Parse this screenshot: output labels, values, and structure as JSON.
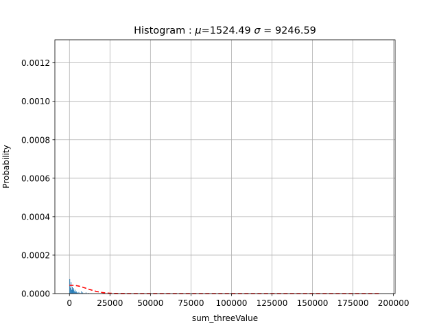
{
  "chart_data": {
    "type": "bar",
    "title": "Histogram : μ=1524.49 σ = 9246.59",
    "title_parts": {
      "prefix": "Histogram : ",
      "mu_symbol": "μ",
      "mu_value": "=1524.49",
      "sigma_symbol": "σ",
      "sigma_value": " = 9246.59"
    },
    "xlabel": "sum_threeValue",
    "ylabel": "Probability",
    "xlim": [
      -9000,
      201000
    ],
    "ylim": [
      0,
      0.00132
    ],
    "grid": true,
    "x_ticks": [
      0,
      25000,
      50000,
      75000,
      100000,
      125000,
      150000,
      175000,
      200000
    ],
    "x_tick_labels": [
      "0",
      "25000",
      "50000",
      "75000",
      "100000",
      "125000",
      "150000",
      "175000",
      "200000"
    ],
    "y_ticks": [
      0,
      0.0002,
      0.0004,
      0.0006,
      0.0008,
      0.001,
      0.0012
    ],
    "y_tick_labels": [
      "0.0000",
      "0.0002",
      "0.0004",
      "0.0006",
      "0.0008",
      "0.0010",
      "0.0012"
    ],
    "histogram": {
      "color": "#1f77b4",
      "bins": [
        {
          "x0": 0,
          "x1": 400,
          "y": 7.5e-05
        },
        {
          "x0": 400,
          "x1": 800,
          "y": 3e-05
        },
        {
          "x0": 800,
          "x1": 1200,
          "y": 6e-05
        },
        {
          "x0": 1200,
          "x1": 1600,
          "y": 2e-05
        },
        {
          "x0": 1600,
          "x1": 2000,
          "y": 3.5e-05
        },
        {
          "x0": 2000,
          "x1": 2400,
          "y": 2e-05
        },
        {
          "x0": 2400,
          "x1": 2800,
          "y": 2.8e-05
        },
        {
          "x0": 2800,
          "x1": 3200,
          "y": 1.2e-05
        },
        {
          "x0": 3200,
          "x1": 3600,
          "y": 2e-05
        },
        {
          "x0": 3600,
          "x1": 4000,
          "y": 8e-06
        },
        {
          "x0": 4000,
          "x1": 4400,
          "y": 1.2e-05
        },
        {
          "x0": 4400,
          "x1": 4800,
          "y": 6e-06
        },
        {
          "x0": 4800,
          "x1": 5200,
          "y": 5e-06
        },
        {
          "x0": 5600,
          "x1": 6000,
          "y": 8e-06
        },
        {
          "x0": 6400,
          "x1": 6800,
          "y": 4e-06
        },
        {
          "x0": 7200,
          "x1": 7600,
          "y": 1.2e-05
        },
        {
          "x0": 8000,
          "x1": 8400,
          "y": 6e-06
        },
        {
          "x0": 8800,
          "x1": 9200,
          "y": 3e-06
        },
        {
          "x0": 10000,
          "x1": 10400,
          "y": 6e-06
        },
        {
          "x0": 11600,
          "x1": 12000,
          "y": 3e-06
        },
        {
          "x0": 13200,
          "x1": 13600,
          "y": 2e-06
        }
      ]
    },
    "normal_fit": {
      "style": "dashed",
      "color": "#ff0000",
      "mu": 1524.49,
      "sigma": 9246.59,
      "x_range": [
        0,
        191000
      ]
    }
  }
}
